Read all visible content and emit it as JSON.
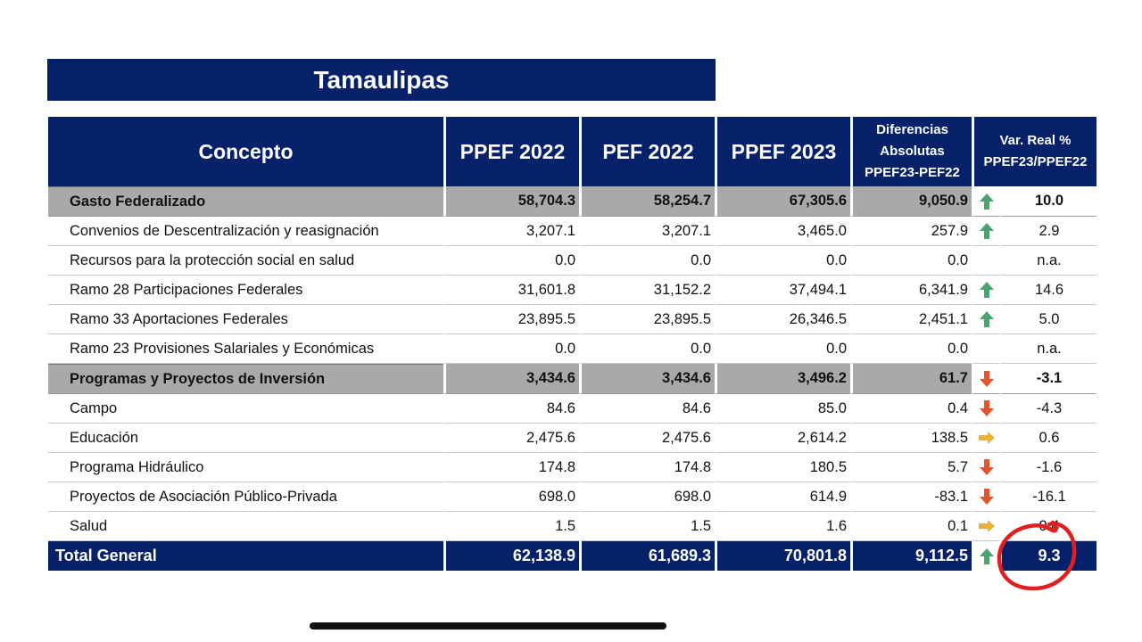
{
  "title": "Tamaulipas",
  "colors": {
    "header_bg": "#062169",
    "subtotal_bg": "#a9a9a9",
    "up": "#4aa36f",
    "down": "#e0552a",
    "flat": "#e8b23a",
    "annotation": "#e02020"
  },
  "headers": {
    "concepto": "Concepto",
    "ppef2022": "PPEF 2022",
    "pef2022": "PEF 2022",
    "ppef2023": "PPEF 2023",
    "dif_line1": "Diferencias",
    "dif_line2": "Absolutas",
    "dif_line3": "PPEF23-PEF22",
    "var_line1": "Var. Real %",
    "var_line2": "PPEF23/PPEF22"
  },
  "rows": [
    {
      "concepto": "Gasto Federalizado",
      "ppef2022": "58,704.3",
      "pef2022": "58,254.7",
      "ppef2023": "67,305.6",
      "dif": "9,050.9",
      "trend": "up",
      "var": "10.0",
      "kind": "subtotal"
    },
    {
      "concepto": "Convenios de Descentralización y reasignación",
      "ppef2022": "3,207.1",
      "pef2022": "3,207.1",
      "ppef2023": "3,465.0",
      "dif": "257.9",
      "trend": "up",
      "var": "2.9",
      "kind": "item"
    },
    {
      "concepto": "Recursos para la protección social en salud",
      "ppef2022": "0.0",
      "pef2022": "0.0",
      "ppef2023": "0.0",
      "dif": "0.0",
      "trend": "none",
      "var": "n.a.",
      "kind": "item"
    },
    {
      "concepto": "Ramo 28 Participaciones Federales",
      "ppef2022": "31,601.8",
      "pef2022": "31,152.2",
      "ppef2023": "37,494.1",
      "dif": "6,341.9",
      "trend": "up",
      "var": "14.6",
      "kind": "item"
    },
    {
      "concepto": "Ramo 33 Aportaciones Federales",
      "ppef2022": "23,895.5",
      "pef2022": "23,895.5",
      "ppef2023": "26,346.5",
      "dif": "2,451.1",
      "trend": "up",
      "var": "5.0",
      "kind": "item"
    },
    {
      "concepto": "Ramo 23 Provisiones Salariales y Económicas",
      "ppef2022": "0.0",
      "pef2022": "0.0",
      "ppef2023": "0.0",
      "dif": "0.0",
      "trend": "none",
      "var": "n.a.",
      "kind": "item"
    },
    {
      "concepto": "Programas y Proyectos de Inversión",
      "ppef2022": "3,434.6",
      "pef2022": "3,434.6",
      "ppef2023": "3,496.2",
      "dif": "61.7",
      "trend": "down",
      "var": "-3.1",
      "kind": "subtotal"
    },
    {
      "concepto": "Campo",
      "ppef2022": "84.6",
      "pef2022": "84.6",
      "ppef2023": "85.0",
      "dif": "0.4",
      "trend": "down",
      "var": "-4.3",
      "kind": "item"
    },
    {
      "concepto": "Educación",
      "ppef2022": "2,475.6",
      "pef2022": "2,475.6",
      "ppef2023": "2,614.2",
      "dif": "138.5",
      "trend": "flat",
      "var": "0.6",
      "kind": "item"
    },
    {
      "concepto": "Programa Hidráulico",
      "ppef2022": "174.8",
      "pef2022": "174.8",
      "ppef2023": "180.5",
      "dif": "5.7",
      "trend": "down",
      "var": "-1.6",
      "kind": "item"
    },
    {
      "concepto": "Proyectos de Asociación Público-Privada",
      "ppef2022": "698.0",
      "pef2022": "698.0",
      "ppef2023": "614.9",
      "dif": "-83.1",
      "trend": "down",
      "var": "-16.1",
      "kind": "item"
    },
    {
      "concepto": "Salud",
      "ppef2022": "1.5",
      "pef2022": "1.5",
      "ppef2023": "1.6",
      "dif": "0.1",
      "trend": "flat",
      "var": "0.4",
      "kind": "item"
    }
  ],
  "total": {
    "concepto": "Total General",
    "ppef2022": "62,138.9",
    "pef2022": "61,689.3",
    "ppef2023": "70,801.8",
    "dif": "9,112.5",
    "trend": "up",
    "var": "9.3"
  }
}
